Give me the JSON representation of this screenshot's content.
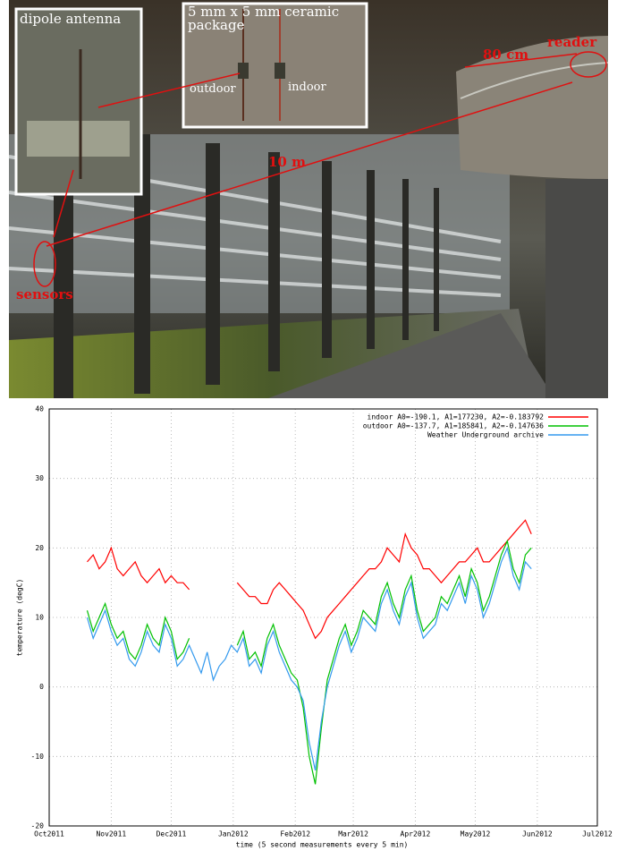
{
  "photo": {
    "inset_left": "dipole antenna",
    "inset_right": "5 mm x 5 mm ceramic package",
    "label_outdoor": "outdoor",
    "label_indoor": "indoor",
    "distance_reader": "80 cm",
    "reader": "reader",
    "distance_sensors": "10 m",
    "sensors": "sensors"
  },
  "chart_data": {
    "type": "line",
    "y_label": "temperature (degC)",
    "x_label": "time (5 second measurements every 5 min)",
    "x": [
      19,
      22,
      25,
      28,
      31,
      34,
      37,
      40,
      43,
      46,
      49,
      52,
      55,
      58,
      61,
      64,
      67,
      70,
      73,
      76,
      79,
      82,
      85,
      88,
      91,
      94,
      97,
      100,
      103,
      106,
      109,
      112,
      115,
      118,
      121,
      124,
      127,
      130,
      133,
      136,
      139,
      142,
      145,
      148,
      151,
      154,
      157,
      160,
      163,
      166,
      169,
      172,
      175,
      178,
      181,
      184,
      187,
      190,
      193,
      196,
      199,
      202,
      205,
      208,
      211,
      214,
      217,
      220,
      223,
      226,
      229,
      232,
      235,
      238,
      241
    ],
    "series": [
      {
        "name": "indoor A0=-190.1, A1=177230, A2=-0.183792",
        "color": "#ff0000",
        "values": [
          18,
          19,
          17,
          18,
          20,
          17,
          16,
          17,
          18,
          16,
          15,
          16,
          17,
          15,
          16,
          15,
          15,
          14,
          null,
          null,
          null,
          null,
          null,
          null,
          null,
          15,
          14,
          13,
          13,
          12,
          12,
          14,
          15,
          14,
          13,
          12,
          11,
          9,
          7,
          8,
          10,
          11,
          12,
          13,
          14,
          15,
          16,
          17,
          17,
          18,
          20,
          19,
          18,
          22,
          20,
          19,
          17,
          17,
          16,
          15,
          16,
          17,
          18,
          18,
          19,
          20,
          18,
          18,
          19,
          20,
          21,
          22,
          23,
          24,
          22
        ]
      },
      {
        "name": "outdoor A0=-137.7, A1=185841, A2=-0.147636",
        "color": "#00c000",
        "values": [
          11,
          8,
          10,
          12,
          9,
          7,
          8,
          5,
          4,
          6,
          9,
          7,
          6,
          10,
          8,
          4,
          5,
          7,
          null,
          null,
          null,
          null,
          null,
          null,
          null,
          6,
          8,
          4,
          5,
          3,
          7,
          9,
          6,
          4,
          2,
          1,
          -3,
          -10,
          -14,
          -6,
          1,
          4,
          7,
          9,
          6,
          8,
          11,
          10,
          9,
          13,
          15,
          12,
          10,
          14,
          16,
          11,
          8,
          9,
          10,
          13,
          12,
          14,
          16,
          13,
          17,
          15,
          11,
          13,
          16,
          19,
          21,
          17,
          15,
          19,
          20
        ]
      },
      {
        "name": "Weather Underground archive",
        "color": "#3399ee",
        "values": [
          10,
          7,
          9,
          11,
          8,
          6,
          7,
          4,
          3,
          5,
          8,
          6,
          5,
          9,
          7,
          3,
          4,
          6,
          4,
          2,
          5,
          1,
          3,
          4,
          6,
          5,
          7,
          3,
          4,
          2,
          6,
          8,
          5,
          3,
          1,
          0,
          -2,
          -8,
          -12,
          -5,
          0,
          3,
          6,
          8,
          5,
          7,
          10,
          9,
          8,
          12,
          14,
          11,
          9,
          13,
          15,
          10,
          7,
          8,
          9,
          12,
          11,
          13,
          15,
          12,
          16,
          14,
          10,
          12,
          15,
          18,
          20,
          16,
          14,
          18,
          17
        ]
      }
    ],
    "xlim": [
      0,
      274
    ],
    "xticks": [
      {
        "value": 0,
        "label": "Oct2011"
      },
      {
        "value": 31,
        "label": "Nov2011"
      },
      {
        "value": 61,
        "label": "Dec2011"
      },
      {
        "value": 92,
        "label": "Jan2012"
      },
      {
        "value": 123,
        "label": "Feb2012"
      },
      {
        "value": 152,
        "label": "Mar2012"
      },
      {
        "value": 183,
        "label": "Apr2012"
      },
      {
        "value": 213,
        "label": "May2012"
      },
      {
        "value": 244,
        "label": "Jun2012"
      },
      {
        "value": 274,
        "label": "Jul2012"
      }
    ],
    "ylim": [
      -20,
      40
    ],
    "yticks": [
      -20,
      -10,
      0,
      10,
      20,
      30,
      40
    ],
    "grid": true
  }
}
